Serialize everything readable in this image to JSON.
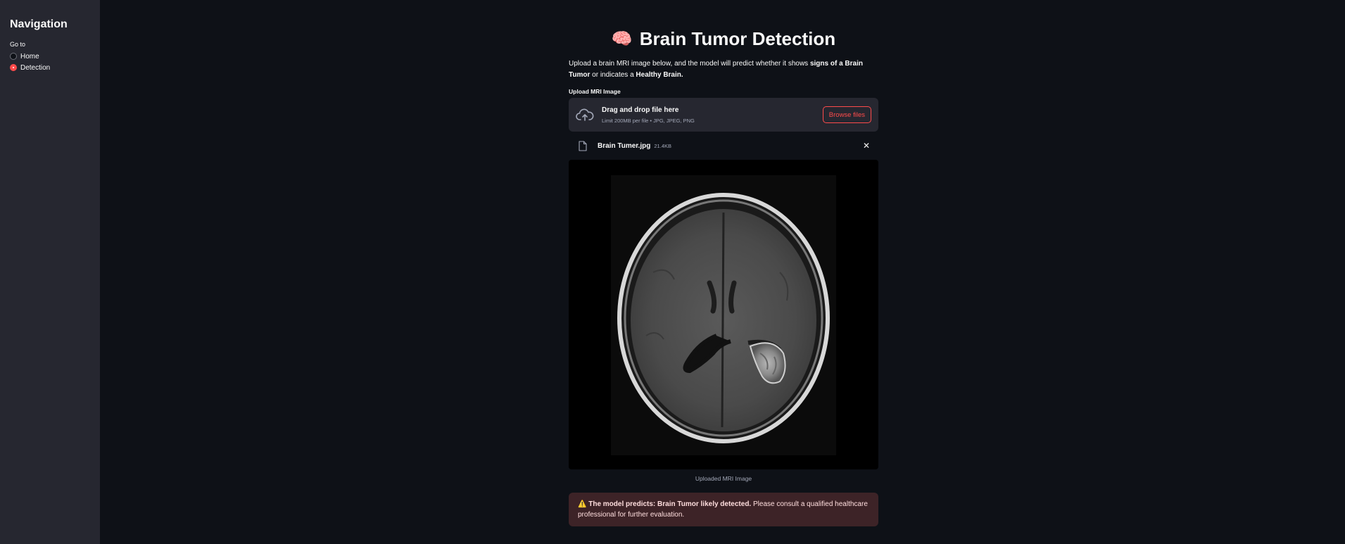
{
  "sidebar": {
    "title": "Navigation",
    "goto_label": "Go to",
    "options": [
      {
        "label": "Home",
        "selected": false
      },
      {
        "label": "Detection",
        "selected": true
      }
    ]
  },
  "main": {
    "title_icon": "🧠",
    "title": "Brain Tumor Detection",
    "desc_part1": "Upload a brain MRI image below, and the model will predict whether it shows ",
    "desc_bold1": "signs of a Brain Tumor",
    "desc_part2": " or indicates a ",
    "desc_bold2": "Healthy Brain.",
    "upload_label": "Upload MRI Image",
    "dropzone": {
      "heading": "Drag and drop file here",
      "limits": "Limit 200MB per file • JPG, JPEG, PNG",
      "browse_label": "Browse files"
    },
    "file": {
      "name": "Brain Tumer.jpg",
      "size": "21.4KB"
    },
    "image_caption": "Uploaded MRI Image",
    "alert": {
      "icon": "⚠️",
      "bold": "The model predicts: Brain Tumor likely detected.",
      "text": " Please consult a qualified healthcare professional for further evaluation."
    }
  },
  "colors": {
    "background": "#0e1117",
    "sidebar": "#262730",
    "accent": "#ff4b4b",
    "alert_bg": "#3d2327"
  }
}
